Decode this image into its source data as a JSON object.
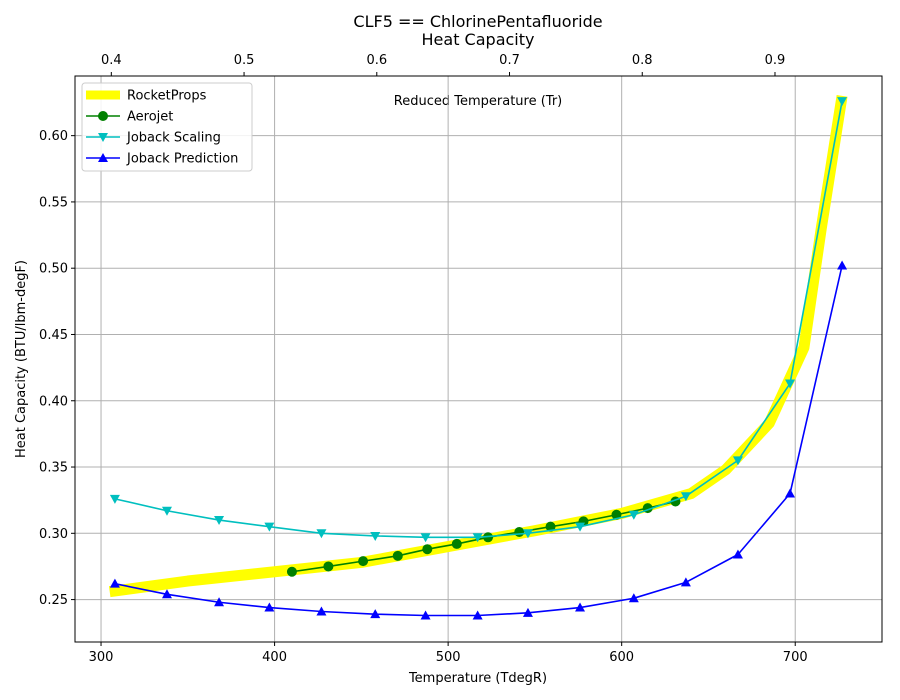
{
  "title_line1": "CLF5 == ChlorinePentafluoride",
  "title_line2": "Heat Capacity",
  "chart_data": {
    "type": "line",
    "xlabel": "Temperature (TdegR)",
    "ylabel": "Heat Capacity (BTU/lbm-degF)",
    "x2label": "Reduced Temperature (Tr)",
    "xlim": [
      285,
      750
    ],
    "ylim": [
      0.218,
      0.645
    ],
    "x_ticks": [
      300,
      400,
      500,
      600,
      700
    ],
    "y_ticks": [
      0.25,
      0.3,
      0.35,
      0.4,
      0.45,
      0.5,
      0.55,
      0.6
    ],
    "y_tick_labels": [
      "0.25",
      "0.30",
      "0.35",
      "0.40",
      "0.45",
      "0.50",
      "0.55",
      "0.60"
    ],
    "x2_ticks": [
      0.4,
      0.5,
      0.6,
      0.7,
      0.8,
      0.9
    ],
    "x2_per_x": 0.0013075,
    "grid": true,
    "legend_position": "top-left",
    "series": [
      {
        "name": "RocketProps",
        "color": "#ffff00",
        "marker": "none",
        "style": "thick",
        "x": [
          305,
          350,
          400,
          450,
          500,
          550,
          600,
          640,
          660,
          685,
          705,
          715,
          727
        ],
        "y": [
          0.256,
          0.264,
          0.271,
          0.278,
          0.29,
          0.302,
          0.315,
          0.33,
          0.348,
          0.383,
          0.44,
          0.53,
          0.63
        ]
      },
      {
        "name": "Aerojet",
        "color": "#008000",
        "marker": "circle",
        "x": [
          410,
          431,
          451,
          471,
          488,
          505,
          523,
          541,
          559,
          578,
          597,
          615,
          631
        ],
        "y": [
          0.271,
          0.275,
          0.279,
          0.283,
          0.288,
          0.292,
          0.297,
          0.301,
          0.305,
          0.309,
          0.314,
          0.319,
          0.324
        ]
      },
      {
        "name": "Joback Scaling",
        "color": "#00bfbf",
        "marker": "triangle-down",
        "x": [
          308,
          338,
          368,
          397,
          427,
          458,
          487,
          517,
          546,
          576,
          607,
          637,
          667,
          697,
          727
        ],
        "y": [
          0.326,
          0.317,
          0.31,
          0.305,
          0.3,
          0.298,
          0.297,
          0.297,
          0.3,
          0.305,
          0.314,
          0.328,
          0.355,
          0.413,
          0.626
        ]
      },
      {
        "name": "Joback Prediction",
        "color": "#0000ff",
        "marker": "triangle-up",
        "x": [
          308,
          338,
          368,
          397,
          427,
          458,
          487,
          517,
          546,
          576,
          607,
          637,
          667,
          697,
          727
        ],
        "y": [
          0.262,
          0.254,
          0.248,
          0.244,
          0.241,
          0.239,
          0.238,
          0.238,
          0.24,
          0.244,
          0.251,
          0.263,
          0.284,
          0.33,
          0.502
        ]
      }
    ]
  }
}
